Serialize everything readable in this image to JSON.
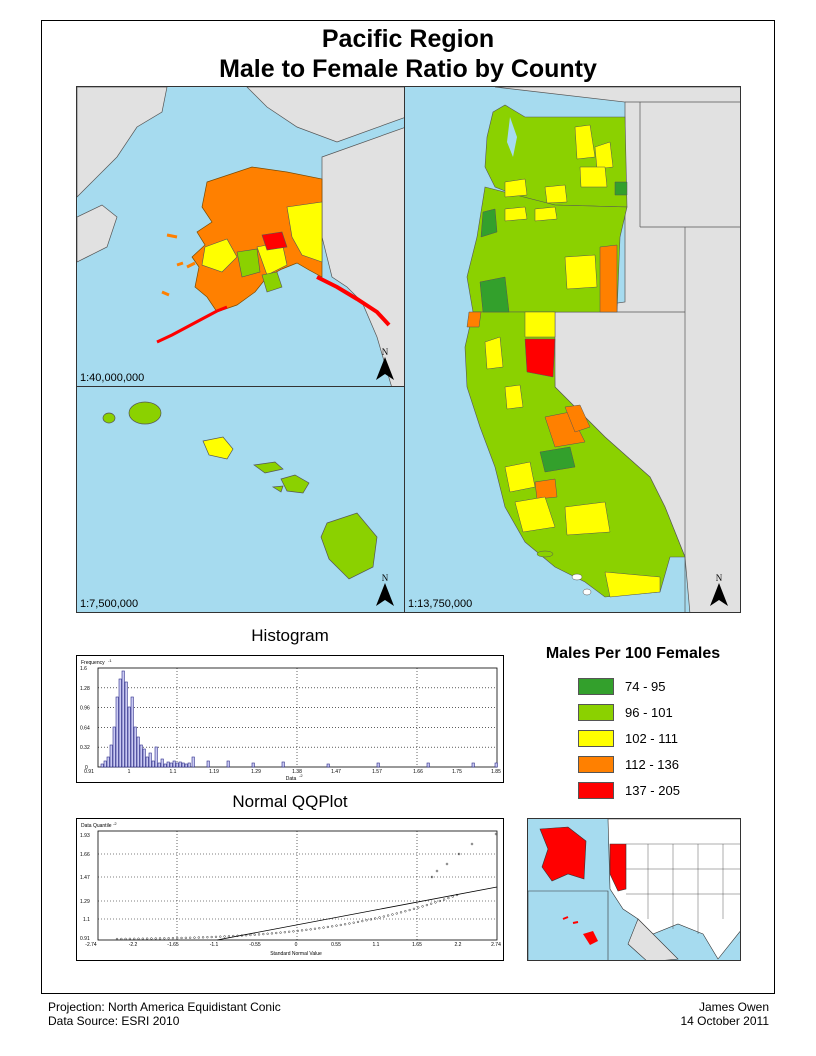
{
  "title": {
    "line1": "Pacific Region",
    "line2": "Male to Female Ratio by County"
  },
  "maps": {
    "alaska": {
      "scale": "1:40,000,000"
    },
    "hawaii": {
      "scale": "1:7,500,000"
    },
    "mainland": {
      "scale": "1:13,750,000"
    },
    "north_label": "N"
  },
  "histogram": {
    "title": "Histogram",
    "y_axis_label": "Frequency",
    "y_exponent": "-1",
    "x_axis_label": "Data",
    "x_exponent": "-2",
    "y_ticks": [
      "1.6",
      "1.28",
      "0.96",
      "0.64",
      "0.32",
      "0"
    ],
    "x_ticks": [
      "0.91",
      "1",
      "1.1",
      "1.19",
      "1.29",
      "1.38",
      "1.47",
      "1.57",
      "1.66",
      "1.75",
      "1.85"
    ]
  },
  "qqplot": {
    "title": "Normal QQPlot",
    "y_axis_label": "Data Quantile",
    "y_exponent": "-2",
    "x_axis_label": "Standard Normal Value",
    "y_ticks": [
      "1.93",
      "1.66",
      "1.47",
      "1.29",
      "1.1",
      "0.91"
    ],
    "x_ticks": [
      "-2.74",
      "-2.2",
      "-1.65",
      "-1.1",
      "-0.55",
      "0",
      "0.55",
      "1.1",
      "1.65",
      "2.2",
      "2.74"
    ]
  },
  "legend": {
    "title": "Males Per 100 Females",
    "items": [
      {
        "label": "74 - 95",
        "color": "#33a02c"
      },
      {
        "label": "96 - 101",
        "color": "#8bd100"
      },
      {
        "label": "102 - 111",
        "color": "#ffff00"
      },
      {
        "label": "112 - 136",
        "color": "#ff8000"
      },
      {
        "label": "137 - 205",
        "color": "#ff0000"
      }
    ]
  },
  "footer": {
    "projection": "Projection: North America Equidistant Conic",
    "source": "Data Source: ESRI 2010",
    "author": "James Owen",
    "date": "14 October 2011"
  },
  "colors": {
    "water": "#a6dbef",
    "land_other": "#e1e1e1",
    "histogram_bar": "#6f6fd8"
  }
}
